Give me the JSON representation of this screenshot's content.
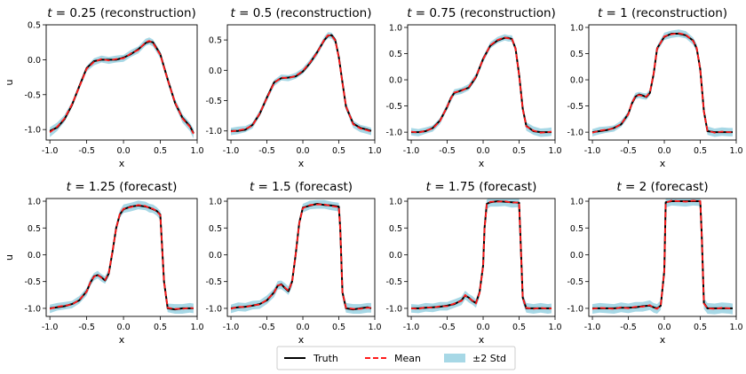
{
  "colors": {
    "truth": "#000000",
    "mean": "#ff1a1a",
    "band": "#a7d8e6",
    "frame": "#000000"
  },
  "legend": {
    "position": "bottom-center",
    "truth_label": "Truth",
    "mean_label": "Mean",
    "band_label": "±2 Std"
  },
  "chart_data": [
    {
      "type": "line",
      "t_label": "t",
      "t_value": "0.25",
      "mode": "(reconstruction)",
      "xlabel": "x",
      "ylabel": "u",
      "xlim": [
        -1.05,
        1.0
      ],
      "ylim": [
        -1.15,
        0.5
      ],
      "xticks": [
        -1.0,
        -0.5,
        0.0,
        0.5,
        1.0
      ],
      "yticks": [
        0.5,
        0.0,
        -0.5,
        -1.0
      ],
      "ytick_labels": [
        "0.5",
        "0.0",
        "-0.5",
        "-1.0"
      ],
      "x": [
        -1.0,
        -0.9,
        -0.8,
        -0.7,
        -0.6,
        -0.5,
        -0.4,
        -0.3,
        -0.2,
        -0.1,
        0.0,
        0.1,
        0.2,
        0.3,
        0.35,
        0.4,
        0.5,
        0.6,
        0.7,
        0.8,
        0.9,
        0.95
      ],
      "truth": [
        -1.02,
        -0.97,
        -0.85,
        -0.65,
        -0.38,
        -0.12,
        -0.02,
        0.0,
        0.0,
        0.0,
        0.03,
        0.08,
        0.15,
        0.24,
        0.26,
        0.25,
        0.08,
        -0.28,
        -0.62,
        -0.83,
        -0.95,
        -1.05
      ],
      "mean": [
        -1.04,
        -0.96,
        -0.84,
        -0.64,
        -0.39,
        -0.13,
        -0.03,
        0.01,
        -0.01,
        0.01,
        0.02,
        0.09,
        0.14,
        0.25,
        0.27,
        0.24,
        0.07,
        -0.29,
        -0.61,
        -0.84,
        -0.96,
        -1.06
      ],
      "std2": [
        0.07,
        0.06,
        0.05,
        0.04,
        0.04,
        0.04,
        0.05,
        0.05,
        0.05,
        0.05,
        0.05,
        0.05,
        0.05,
        0.05,
        0.05,
        0.05,
        0.05,
        0.05,
        0.05,
        0.06,
        0.06,
        0.07
      ]
    },
    {
      "type": "line",
      "t_label": "t",
      "t_value": "0.5",
      "mode": "(reconstruction)",
      "xlabel": "x",
      "ylabel": "",
      "xlim": [
        -1.05,
        1.0
      ],
      "ylim": [
        -1.15,
        0.75
      ],
      "xticks": [
        -1.0,
        -0.5,
        0.0,
        0.5,
        1.0
      ],
      "yticks": [
        0.5,
        0.0,
        -0.5,
        -1.0
      ],
      "ytick_labels": [
        "0.5",
        "0.0",
        "-0.5",
        "-1.0"
      ],
      "x": [
        -1.0,
        -0.9,
        -0.8,
        -0.7,
        -0.6,
        -0.5,
        -0.4,
        -0.3,
        -0.2,
        -0.1,
        0.0,
        0.1,
        0.2,
        0.3,
        0.35,
        0.4,
        0.45,
        0.5,
        0.55,
        0.6,
        0.7,
        0.8,
        0.9,
        0.95
      ],
      "truth": [
        -1.0,
        -1.0,
        -0.98,
        -0.9,
        -0.72,
        -0.45,
        -0.2,
        -0.13,
        -0.12,
        -0.1,
        -0.02,
        0.12,
        0.3,
        0.5,
        0.57,
        0.58,
        0.5,
        0.22,
        -0.2,
        -0.6,
        -0.88,
        -0.95,
        -0.98,
        -1.0
      ],
      "mean": [
        -1.01,
        -0.99,
        -0.97,
        -0.91,
        -0.71,
        -0.46,
        -0.21,
        -0.12,
        -0.13,
        -0.09,
        -0.01,
        0.13,
        0.29,
        0.51,
        0.58,
        0.57,
        0.49,
        0.21,
        -0.21,
        -0.59,
        -0.89,
        -0.96,
        -0.99,
        -1.01
      ],
      "std2": [
        0.06,
        0.06,
        0.05,
        0.05,
        0.05,
        0.05,
        0.05,
        0.05,
        0.05,
        0.05,
        0.05,
        0.05,
        0.05,
        0.05,
        0.05,
        0.05,
        0.05,
        0.05,
        0.06,
        0.06,
        0.06,
        0.06,
        0.06,
        0.06
      ]
    },
    {
      "type": "line",
      "t_label": "t",
      "t_value": "0.75",
      "mode": "(reconstruction)",
      "xlabel": "x",
      "ylabel": "",
      "xlim": [
        -1.05,
        1.0
      ],
      "ylim": [
        -1.15,
        1.05
      ],
      "xticks": [
        -1.0,
        -0.5,
        0.0,
        0.5,
        1.0
      ],
      "yticks": [
        1.0,
        0.5,
        0.0,
        -0.5,
        -1.0
      ],
      "ytick_labels": [
        "1.0",
        "0.5",
        "0.0",
        "-0.5",
        "-1.0"
      ],
      "x": [
        -1.0,
        -0.9,
        -0.8,
        -0.7,
        -0.6,
        -0.5,
        -0.45,
        -0.4,
        -0.3,
        -0.2,
        -0.1,
        0.0,
        0.1,
        0.2,
        0.3,
        0.35,
        0.4,
        0.45,
        0.5,
        0.55,
        0.6,
        0.7,
        0.8,
        0.9,
        0.95
      ],
      "truth": [
        -1.0,
        -1.0,
        -0.98,
        -0.92,
        -0.78,
        -0.52,
        -0.35,
        -0.25,
        -0.2,
        -0.15,
        0.05,
        0.4,
        0.65,
        0.75,
        0.8,
        0.8,
        0.78,
        0.6,
        0.1,
        -0.55,
        -0.88,
        -0.98,
        -1.0,
        -1.0,
        -1.0
      ],
      "mean": [
        -0.99,
        -1.01,
        -0.97,
        -0.93,
        -0.79,
        -0.51,
        -0.36,
        -0.24,
        -0.21,
        -0.14,
        0.06,
        0.39,
        0.66,
        0.76,
        0.81,
        0.79,
        0.79,
        0.59,
        0.09,
        -0.56,
        -0.89,
        -0.97,
        -1.01,
        -1.0,
        -0.99
      ],
      "std2": [
        0.07,
        0.07,
        0.06,
        0.06,
        0.06,
        0.06,
        0.06,
        0.06,
        0.06,
        0.06,
        0.06,
        0.06,
        0.06,
        0.06,
        0.06,
        0.06,
        0.06,
        0.06,
        0.06,
        0.07,
        0.08,
        0.08,
        0.08,
        0.08,
        0.08
      ]
    },
    {
      "type": "line",
      "t_label": "t",
      "t_value": "1",
      "mode": "(reconstruction)",
      "xlabel": "x",
      "ylabel": "",
      "xlim": [
        -1.05,
        1.0
      ],
      "ylim": [
        -1.15,
        1.05
      ],
      "xticks": [
        -1.0,
        -0.5,
        0.0,
        0.5,
        1.0
      ],
      "yticks": [
        1.0,
        0.5,
        0.0,
        -0.5,
        -1.0
      ],
      "ytick_labels": [
        "1.0",
        "0.5",
        "0.0",
        "-0.5",
        "-1.0"
      ],
      "x": [
        -1.0,
        -0.9,
        -0.8,
        -0.7,
        -0.6,
        -0.5,
        -0.45,
        -0.4,
        -0.35,
        -0.3,
        -0.25,
        -0.2,
        -0.15,
        -0.1,
        0.0,
        0.1,
        0.2,
        0.3,
        0.4,
        0.45,
        0.5,
        0.55,
        0.6,
        0.7,
        0.8,
        0.9,
        0.95
      ],
      "truth": [
        -1.0,
        -0.98,
        -0.96,
        -0.92,
        -0.85,
        -0.65,
        -0.45,
        -0.32,
        -0.28,
        -0.3,
        -0.33,
        -0.25,
        0.1,
        0.6,
        0.82,
        0.88,
        0.88,
        0.85,
        0.75,
        0.6,
        0.2,
        -0.6,
        -0.98,
        -1.0,
        -1.0,
        -1.0,
        -1.0
      ],
      "mean": [
        -1.01,
        -0.97,
        -0.95,
        -0.93,
        -0.84,
        -0.66,
        -0.44,
        -0.31,
        -0.29,
        -0.31,
        -0.32,
        -0.24,
        0.11,
        0.59,
        0.83,
        0.87,
        0.89,
        0.86,
        0.74,
        0.61,
        0.19,
        -0.61,
        -0.97,
        -1.01,
        -0.99,
        -1.0,
        -1.0
      ],
      "std2": [
        0.07,
        0.07,
        0.06,
        0.06,
        0.06,
        0.06,
        0.06,
        0.06,
        0.06,
        0.06,
        0.06,
        0.06,
        0.06,
        0.06,
        0.07,
        0.07,
        0.07,
        0.07,
        0.07,
        0.07,
        0.07,
        0.08,
        0.08,
        0.08,
        0.08,
        0.08,
        0.08
      ]
    },
    {
      "type": "line",
      "t_label": "t",
      "t_value": "1.25",
      "mode": "(forecast)",
      "xlabel": "x",
      "ylabel": "u",
      "xlim": [
        -1.05,
        1.0
      ],
      "ylim": [
        -1.15,
        1.05
      ],
      "xticks": [
        -1.0,
        -0.5,
        0.0,
        0.5,
        1.0
      ],
      "yticks": [
        1.0,
        0.5,
        0.0,
        -0.5,
        -1.0
      ],
      "ytick_labels": [
        "1.0",
        "0.5",
        "0.0",
        "-0.5",
        "-1.0"
      ],
      "x": [
        -1.0,
        -0.9,
        -0.8,
        -0.7,
        -0.6,
        -0.5,
        -0.45,
        -0.4,
        -0.35,
        -0.3,
        -0.25,
        -0.2,
        -0.15,
        -0.1,
        -0.05,
        0.0,
        0.1,
        0.2,
        0.3,
        0.35,
        0.4,
        0.45,
        0.5,
        0.55,
        0.6,
        0.7,
        0.8,
        0.9,
        0.95
      ],
      "truth": [
        -1.0,
        -0.98,
        -0.96,
        -0.92,
        -0.85,
        -0.68,
        -0.52,
        -0.4,
        -0.38,
        -0.42,
        -0.48,
        -0.35,
        0.05,
        0.5,
        0.75,
        0.85,
        0.9,
        0.92,
        0.9,
        0.88,
        0.85,
        0.82,
        0.75,
        -0.5,
        -1.0,
        -1.02,
        -1.0,
        -1.0,
        -1.0
      ],
      "mean": [
        -1.01,
        -0.97,
        -0.95,
        -0.93,
        -0.84,
        -0.69,
        -0.51,
        -0.41,
        -0.37,
        -0.43,
        -0.47,
        -0.34,
        0.06,
        0.49,
        0.76,
        0.86,
        0.89,
        0.93,
        0.91,
        0.87,
        0.86,
        0.81,
        0.74,
        -0.51,
        -0.99,
        -1.01,
        -1.01,
        -0.99,
        -1.0
      ],
      "std2": [
        0.08,
        0.07,
        0.07,
        0.07,
        0.07,
        0.07,
        0.07,
        0.07,
        0.07,
        0.07,
        0.07,
        0.07,
        0.07,
        0.07,
        0.07,
        0.08,
        0.08,
        0.08,
        0.08,
        0.08,
        0.08,
        0.08,
        0.08,
        0.08,
        0.08,
        0.09,
        0.09,
        0.09,
        0.09
      ]
    },
    {
      "type": "line",
      "t_label": "t",
      "t_value": "1.5",
      "mode": "(forecast)",
      "xlabel": "x",
      "ylabel": "",
      "xlim": [
        -1.05,
        1.0
      ],
      "ylim": [
        -1.15,
        1.05
      ],
      "xticks": [
        -1.0,
        -0.5,
        0.0,
        0.5,
        1.0
      ],
      "yticks": [
        1.0,
        0.5,
        0.0,
        -0.5,
        -1.0
      ],
      "ytick_labels": [
        "1.0",
        "0.5",
        "0.0",
        "-0.5",
        "-1.0"
      ],
      "x": [
        -1.0,
        -0.9,
        -0.8,
        -0.7,
        -0.6,
        -0.5,
        -0.4,
        -0.35,
        -0.3,
        -0.25,
        -0.2,
        -0.15,
        -0.1,
        -0.05,
        0.0,
        0.1,
        0.2,
        0.3,
        0.4,
        0.5,
        0.52,
        0.55,
        0.6,
        0.7,
        0.8,
        0.9,
        0.95
      ],
      "truth": [
        -1.0,
        -0.98,
        -0.97,
        -0.95,
        -0.92,
        -0.85,
        -0.7,
        -0.58,
        -0.55,
        -0.62,
        -0.68,
        -0.5,
        0.0,
        0.6,
        0.88,
        0.92,
        0.95,
        0.93,
        0.92,
        0.9,
        0.5,
        -0.7,
        -1.0,
        -1.02,
        -1.0,
        -0.98,
        -1.0
      ],
      "mean": [
        -1.01,
        -0.97,
        -0.98,
        -0.94,
        -0.93,
        -0.84,
        -0.71,
        -0.57,
        -0.56,
        -0.61,
        -0.67,
        -0.51,
        0.01,
        0.59,
        0.87,
        0.93,
        0.94,
        0.94,
        0.91,
        0.89,
        0.49,
        -0.71,
        -0.99,
        -1.01,
        -1.01,
        -0.99,
        -0.99
      ],
      "std2": [
        0.08,
        0.08,
        0.08,
        0.08,
        0.08,
        0.08,
        0.08,
        0.08,
        0.08,
        0.08,
        0.08,
        0.08,
        0.08,
        0.08,
        0.08,
        0.08,
        0.08,
        0.08,
        0.08,
        0.08,
        0.08,
        0.09,
        0.09,
        0.09,
        0.09,
        0.09,
        0.09
      ]
    },
    {
      "type": "line",
      "t_label": "t",
      "t_value": "1.75",
      "mode": "(forecast)",
      "xlabel": "x",
      "ylabel": "",
      "xlim": [
        -1.05,
        1.0
      ],
      "ylim": [
        -1.15,
        1.05
      ],
      "xticks": [
        -1.0,
        -0.5,
        0.0,
        0.5,
        1.0
      ],
      "yticks": [
        1.0,
        0.5,
        0.0,
        -0.5,
        -1.0
      ],
      "ytick_labels": [
        "1.0",
        "0.5",
        "0.0",
        "-0.5",
        "-1.0"
      ],
      "x": [
        -1.0,
        -0.9,
        -0.8,
        -0.7,
        -0.6,
        -0.5,
        -0.4,
        -0.3,
        -0.25,
        -0.2,
        -0.15,
        -0.1,
        -0.05,
        0.0,
        0.02,
        0.05,
        0.1,
        0.2,
        0.3,
        0.4,
        0.5,
        0.52,
        0.55,
        0.6,
        0.7,
        0.8,
        0.9,
        0.95
      ],
      "truth": [
        -1.0,
        -1.0,
        -0.99,
        -0.98,
        -0.97,
        -0.95,
        -0.92,
        -0.85,
        -0.76,
        -0.8,
        -0.86,
        -0.9,
        -0.7,
        -0.2,
        0.5,
        0.95,
        0.98,
        1.0,
        0.99,
        0.98,
        0.97,
        0.3,
        -0.8,
        -1.0,
        -1.0,
        -1.0,
        -1.0,
        -1.0
      ],
      "mean": [
        -1.0,
        -1.01,
        -0.98,
        -0.99,
        -0.96,
        -0.96,
        -0.91,
        -0.86,
        -0.75,
        -0.81,
        -0.85,
        -0.91,
        -0.71,
        -0.21,
        0.49,
        0.94,
        0.99,
        0.99,
        1.0,
        0.97,
        0.98,
        0.29,
        -0.81,
        -0.99,
        -1.01,
        -0.99,
        -1.01,
        -1.0
      ],
      "std2": [
        0.08,
        0.08,
        0.08,
        0.08,
        0.08,
        0.08,
        0.08,
        0.08,
        0.08,
        0.08,
        0.08,
        0.08,
        0.08,
        0.08,
        0.08,
        0.09,
        0.09,
        0.09,
        0.09,
        0.09,
        0.09,
        0.09,
        0.09,
        0.09,
        0.09,
        0.09,
        0.09,
        0.09
      ]
    },
    {
      "type": "line",
      "t_label": "t",
      "t_value": "2",
      "mode": "(forecast)",
      "xlabel": "x",
      "ylabel": "",
      "xlim": [
        -1.05,
        1.0
      ],
      "ylim": [
        -1.15,
        1.05
      ],
      "xticks": [
        -1.0,
        -0.5,
        0.0,
        0.5,
        1.0
      ],
      "yticks": [
        1.0,
        0.5,
        0.0,
        -0.5,
        -1.0
      ],
      "ytick_labels": [
        "1.0",
        "0.5",
        "0.0",
        "-0.5",
        "-1.0"
      ],
      "x": [
        -1.0,
        -0.9,
        -0.8,
        -0.7,
        -0.6,
        -0.5,
        -0.4,
        -0.3,
        -0.2,
        -0.15,
        -0.1,
        -0.05,
        0.0,
        0.02,
        0.1,
        0.2,
        0.3,
        0.4,
        0.5,
        0.52,
        0.55,
        0.6,
        0.7,
        0.8,
        0.9,
        0.95
      ],
      "truth": [
        -1.0,
        -1.0,
        -1.0,
        -1.0,
        -0.99,
        -0.99,
        -0.98,
        -0.96,
        -0.95,
        -0.98,
        -1.0,
        -0.95,
        -0.3,
        0.98,
        1.0,
        1.0,
        1.0,
        1.0,
        1.0,
        0.4,
        -0.9,
        -1.0,
        -1.0,
        -1.0,
        -1.0,
        -1.0
      ],
      "mean": [
        -1.01,
        -0.99,
        -1.0,
        -1.01,
        -0.98,
        -1.0,
        -0.97,
        -0.97,
        -0.94,
        -0.99,
        -1.01,
        -0.94,
        -0.31,
        0.97,
        1.01,
        1.0,
        0.99,
        1.01,
        1.0,
        0.39,
        -0.91,
        -1.0,
        -1.01,
        -0.99,
        -1.0,
        -1.01
      ],
      "std2": [
        0.09,
        0.09,
        0.09,
        0.09,
        0.09,
        0.09,
        0.09,
        0.09,
        0.09,
        0.09,
        0.09,
        0.09,
        0.09,
        0.09,
        0.09,
        0.09,
        0.09,
        0.09,
        0.09,
        0.09,
        0.1,
        0.1,
        0.1,
        0.1,
        0.1,
        0.1
      ]
    }
  ]
}
